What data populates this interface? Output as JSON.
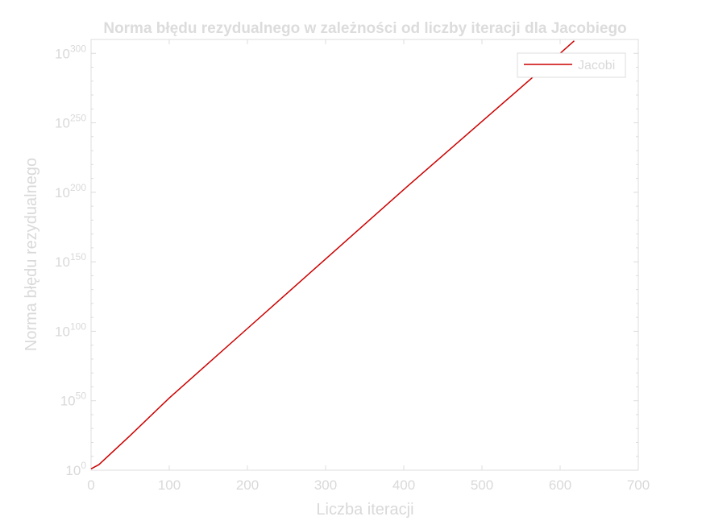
{
  "chart_data": {
    "type": "line",
    "title": "Norma błędu rezydualnego w zależności od liczby iteracji dla Jacobiego",
    "xlabel": "Liczba iteracji",
    "ylabel": "Norma błędu rezydualnego",
    "xlim": [
      0,
      700
    ],
    "ylim_log10": [
      0,
      310
    ],
    "yscale": "log",
    "x_ticks": [
      0,
      100,
      200,
      300,
      400,
      500,
      600,
      700
    ],
    "x_tick_labels": [
      "0",
      "100",
      "200",
      "300",
      "400",
      "500",
      "600",
      "700"
    ],
    "y_ticks_exponent": [
      0,
      50,
      100,
      150,
      200,
      250,
      300
    ],
    "y_tick_base": "10",
    "y_tick_exponents": [
      "0",
      "50",
      "100",
      "150",
      "200",
      "250",
      "300"
    ],
    "grid": false,
    "legend_position": "top-right",
    "series": [
      {
        "name": "Jacobi",
        "color": "#cc0000",
        "x": [
          0,
          5,
          10,
          50,
          100,
          200,
          300,
          400,
          500,
          600,
          618
        ],
        "log10_y": [
          1,
          2.5,
          4,
          25,
          52,
          102,
          152,
          202,
          251,
          300,
          309
        ]
      }
    ]
  }
}
